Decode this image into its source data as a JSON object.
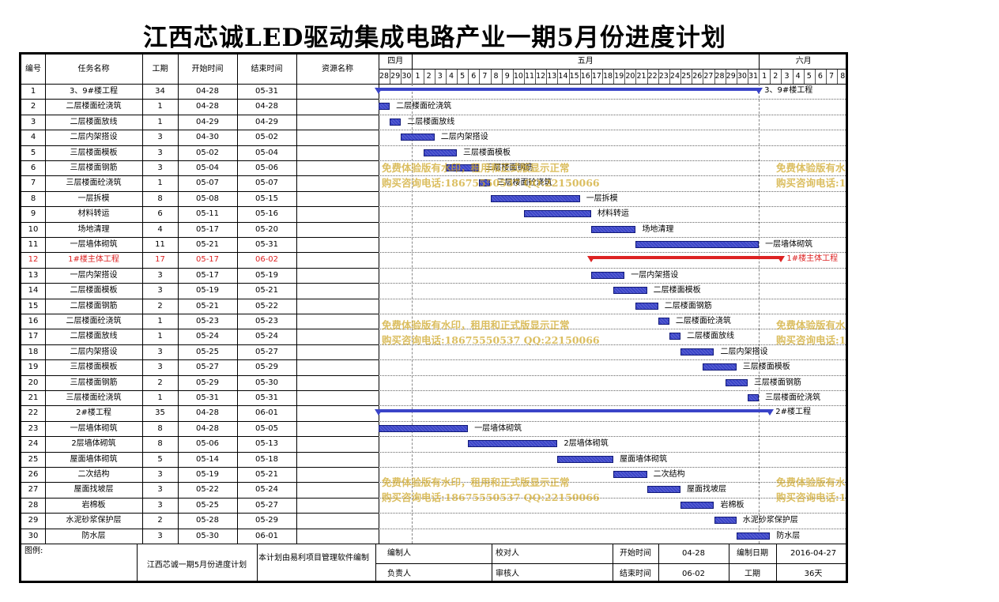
{
  "title": "江西芯诚LED驱动集成电路产业一期5月份进度计划",
  "columns": [
    "编号",
    "任务名称",
    "工期",
    "开始时间",
    "结束时间",
    "资源名称"
  ],
  "months": [
    {
      "label": "四月",
      "from": 0,
      "to": 2
    },
    {
      "label": "五月",
      "from": 3,
      "to": 33
    },
    {
      "label": "六月",
      "from": 34,
      "to": 41
    }
  ],
  "days": [
    "28",
    "29",
    "30",
    "1",
    "2",
    "3",
    "4",
    "5",
    "6",
    "7",
    "8",
    "9",
    "10",
    "11",
    "12",
    "13",
    "14",
    "15",
    "16",
    "17",
    "18",
    "19",
    "20",
    "21",
    "22",
    "23",
    "24",
    "25",
    "26",
    "27",
    "28",
    "29",
    "30",
    "31",
    "1",
    "2",
    "3",
    "4",
    "5",
    "6",
    "7",
    "8"
  ],
  "colors": {
    "bar": "#3a44c8",
    "summary": "#3a44c8",
    "critical": "#dd2222",
    "watermark": "#cda523"
  },
  "tasks": [
    {
      "id": "1",
      "name": "3、9#楼工程",
      "duration": "34",
      "start": "04-28",
      "end": "05-31",
      "s": 0,
      "e": 33,
      "summary": true
    },
    {
      "id": "2",
      "name": "二层楼面砼浇筑",
      "duration": "1",
      "start": "04-28",
      "end": "04-28",
      "s": 0,
      "e": 0
    },
    {
      "id": "3",
      "name": "二层楼面放线",
      "duration": "1",
      "start": "04-29",
      "end": "04-29",
      "s": 1,
      "e": 1
    },
    {
      "id": "4",
      "name": "二层内架搭设",
      "duration": "3",
      "start": "04-30",
      "end": "05-02",
      "s": 2,
      "e": 4
    },
    {
      "id": "5",
      "name": "三层楼面模板",
      "duration": "3",
      "start": "05-02",
      "end": "05-04",
      "s": 4,
      "e": 6
    },
    {
      "id": "6",
      "name": "三层楼面钢筋",
      "duration": "3",
      "start": "05-04",
      "end": "05-06",
      "s": 6,
      "e": 8
    },
    {
      "id": "7",
      "name": "三层楼面砼浇筑",
      "duration": "1",
      "start": "05-07",
      "end": "05-07",
      "s": 9,
      "e": 9
    },
    {
      "id": "8",
      "name": "一层拆模",
      "duration": "8",
      "start": "05-08",
      "end": "05-15",
      "s": 10,
      "e": 17
    },
    {
      "id": "9",
      "name": "材料转运",
      "duration": "6",
      "start": "05-11",
      "end": "05-16",
      "s": 13,
      "e": 18
    },
    {
      "id": "10",
      "name": "场地清理",
      "duration": "4",
      "start": "05-17",
      "end": "05-20",
      "s": 19,
      "e": 22
    },
    {
      "id": "11",
      "name": "一层墙体砌筑",
      "duration": "11",
      "start": "05-21",
      "end": "05-31",
      "s": 23,
      "e": 33
    },
    {
      "id": "12",
      "name": "1#楼主体工程",
      "duration": "17",
      "start": "05-17",
      "end": "06-02",
      "s": 19,
      "e": 35,
      "summary": true,
      "critical": true
    },
    {
      "id": "13",
      "name": "一层内架搭设",
      "duration": "3",
      "start": "05-17",
      "end": "05-19",
      "s": 19,
      "e": 21
    },
    {
      "id": "14",
      "name": "二层楼面模板",
      "duration": "3",
      "start": "05-19",
      "end": "05-21",
      "s": 21,
      "e": 23
    },
    {
      "id": "15",
      "name": "二层楼面钢筋",
      "duration": "2",
      "start": "05-21",
      "end": "05-22",
      "s": 23,
      "e": 24
    },
    {
      "id": "16",
      "name": "二层楼面砼浇筑",
      "duration": "1",
      "start": "05-23",
      "end": "05-23",
      "s": 25,
      "e": 25
    },
    {
      "id": "17",
      "name": "二层楼面放线",
      "duration": "1",
      "start": "05-24",
      "end": "05-24",
      "s": 26,
      "e": 26
    },
    {
      "id": "18",
      "name": "二层内架搭设",
      "duration": "3",
      "start": "05-25",
      "end": "05-27",
      "s": 27,
      "e": 29
    },
    {
      "id": "19",
      "name": "三层楼面模板",
      "duration": "3",
      "start": "05-27",
      "end": "05-29",
      "s": 29,
      "e": 31
    },
    {
      "id": "20",
      "name": "三层楼面钢筋",
      "duration": "2",
      "start": "05-29",
      "end": "05-30",
      "s": 31,
      "e": 32
    },
    {
      "id": "21",
      "name": "三层楼面砼浇筑",
      "duration": "1",
      "start": "05-31",
      "end": "05-31",
      "s": 33,
      "e": 33
    },
    {
      "id": "22",
      "name": "2#楼工程",
      "duration": "35",
      "start": "04-28",
      "end": "06-01",
      "s": 0,
      "e": 34,
      "summary": true
    },
    {
      "id": "23",
      "name": "一层墙体砌筑",
      "duration": "8",
      "start": "04-28",
      "end": "05-05",
      "s": 0,
      "e": 7
    },
    {
      "id": "24",
      "name": "2层墙体砌筑",
      "duration": "8",
      "start": "05-06",
      "end": "05-13",
      "s": 8,
      "e": 15
    },
    {
      "id": "25",
      "name": "屋面墙体砌筑",
      "duration": "5",
      "start": "05-14",
      "end": "05-18",
      "s": 16,
      "e": 20
    },
    {
      "id": "26",
      "name": "二次结构",
      "duration": "3",
      "start": "05-19",
      "end": "05-21",
      "s": 21,
      "e": 23
    },
    {
      "id": "27",
      "name": "屋面找坡层",
      "duration": "3",
      "start": "05-22",
      "end": "05-24",
      "s": 24,
      "e": 26
    },
    {
      "id": "28",
      "name": "岩棉板",
      "duration": "3",
      "start": "05-25",
      "end": "05-27",
      "s": 27,
      "e": 29
    },
    {
      "id": "29",
      "name": "水泥砂浆保护层",
      "duration": "2",
      "start": "05-28",
      "end": "05-29",
      "s": 30,
      "e": 31
    },
    {
      "id": "30",
      "name": "防水层",
      "duration": "3",
      "start": "05-30",
      "end": "06-01",
      "s": 32,
      "e": 34
    }
  ],
  "footer": {
    "legend_label": "图例:",
    "plan_name": "江西芯诚一期5月份进度计划",
    "note": "本计划由易利项目管理软件编制",
    "compiler_label": "编制人",
    "checker_label": "校对人",
    "start_label": "开始时间",
    "start_value": "04-28",
    "date_label": "编制日期",
    "date_value": "2016-04-27",
    "leader_label": "负责人",
    "reviewer_label": "审核人",
    "end_label": "结束时间",
    "end_value": "06-02",
    "duration_label": "工期",
    "duration_value": "36天"
  },
  "watermark": {
    "line1": "免费体验版有水印，租用和正式版显示正常",
    "line2": "购买咨询电话:18675550537 QQ:22150066"
  }
}
